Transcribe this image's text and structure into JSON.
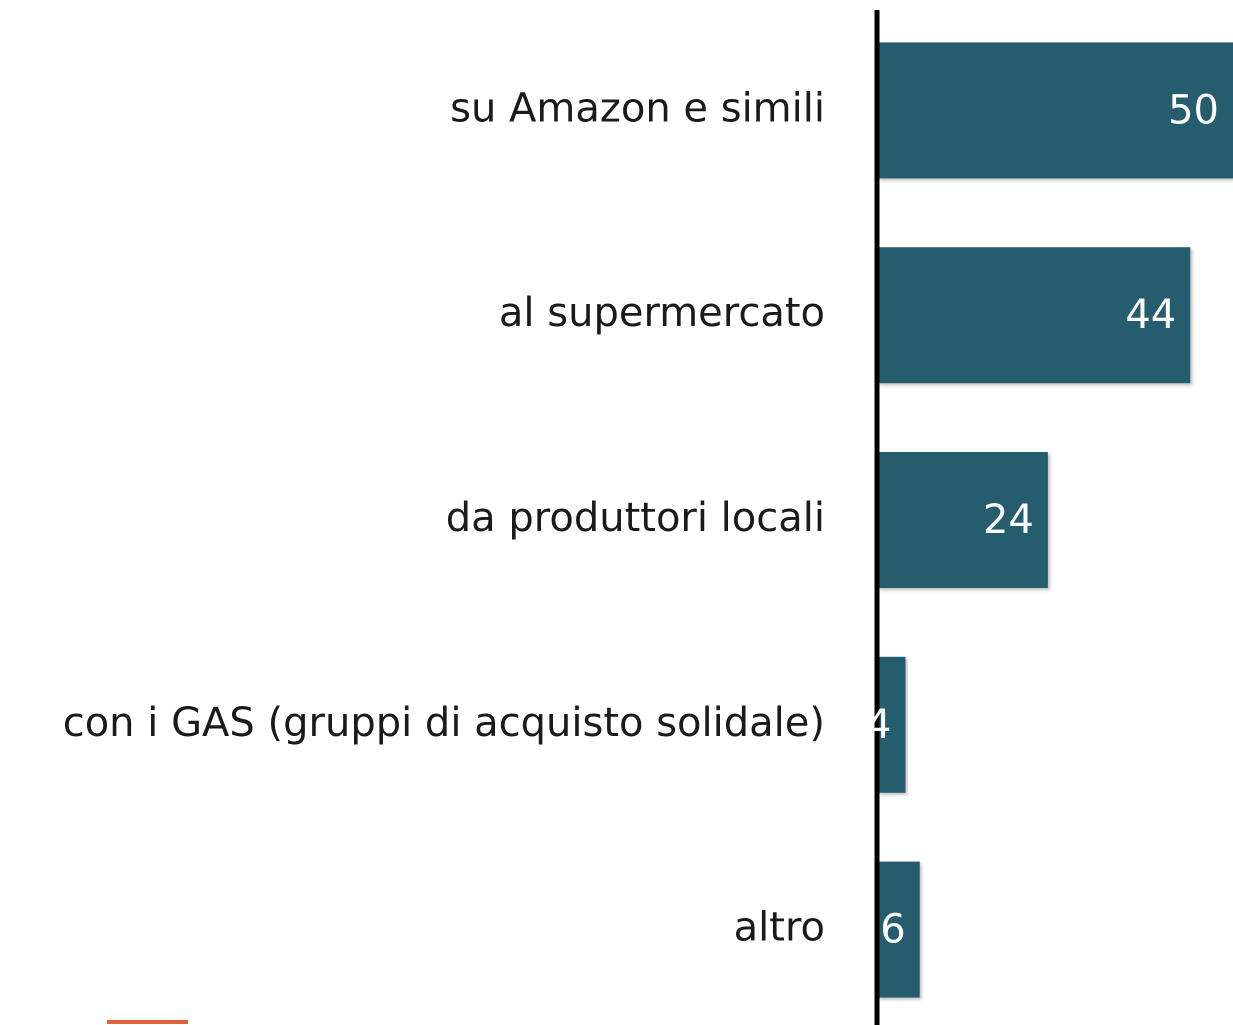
{
  "chart_data": {
    "type": "bar",
    "orientation": "horizontal",
    "categories": [
      "su Amazon e simili",
      "al supermercato",
      "da produttori locali",
      "con i GAS (gruppi di acquisto solidale)",
      "altro"
    ],
    "values": [
      50,
      44,
      24,
      4,
      6
    ],
    "color": "#255d6e",
    "xlim": [
      0,
      50
    ]
  }
}
